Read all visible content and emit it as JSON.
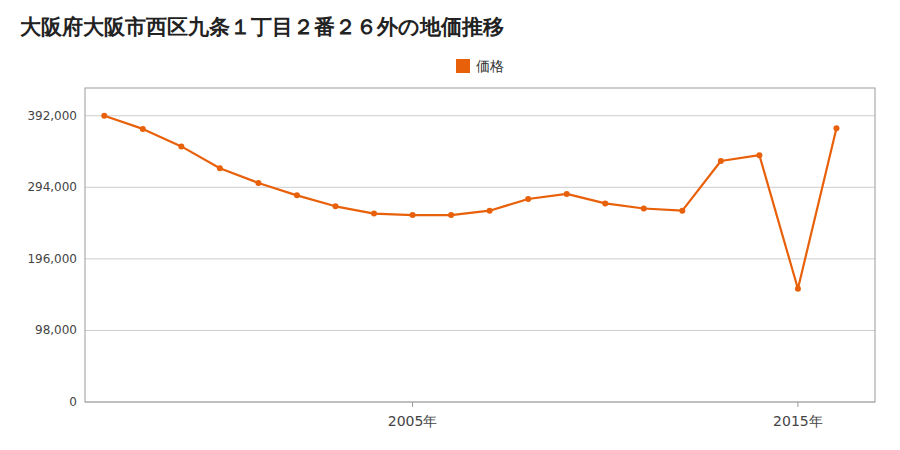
{
  "chart_data": {
    "type": "line",
    "title": "大阪府大阪市西区九条１丁目２番２６外の地価推移",
    "x": [
      1997,
      1998,
      1999,
      2000,
      2001,
      2002,
      2003,
      2004,
      2005,
      2006,
      2007,
      2008,
      2009,
      2010,
      2011,
      2012,
      2013,
      2014,
      2015,
      2016
    ],
    "series": [
      {
        "name": "価格",
        "color": "#E8600A",
        "marker": "circle",
        "line_style": "solid",
        "values": [
          392000,
          374000,
          350000,
          320000,
          300000,
          283000,
          268000,
          258000,
          256000,
          256000,
          262000,
          278000,
          285000,
          272000,
          265000,
          262000,
          330000,
          338000,
          155000,
          375000
        ]
      }
    ],
    "xlim": [
      1996.5,
      2017.0
    ],
    "xticks": [
      {
        "value": 2005,
        "label": "2005年"
      },
      {
        "value": 2015,
        "label": "2015年"
      }
    ],
    "ylim": [
      0,
      430000
    ],
    "yticks": [
      0,
      {
        "value": 98000,
        "label": "98,000"
      },
      {
        "value": 196000,
        "label": "196,000"
      },
      {
        "value": 294000,
        "label": "294,000"
      },
      {
        "value": 392000,
        "label": "392,000"
      }
    ],
    "grid": true,
    "legend": "top"
  }
}
